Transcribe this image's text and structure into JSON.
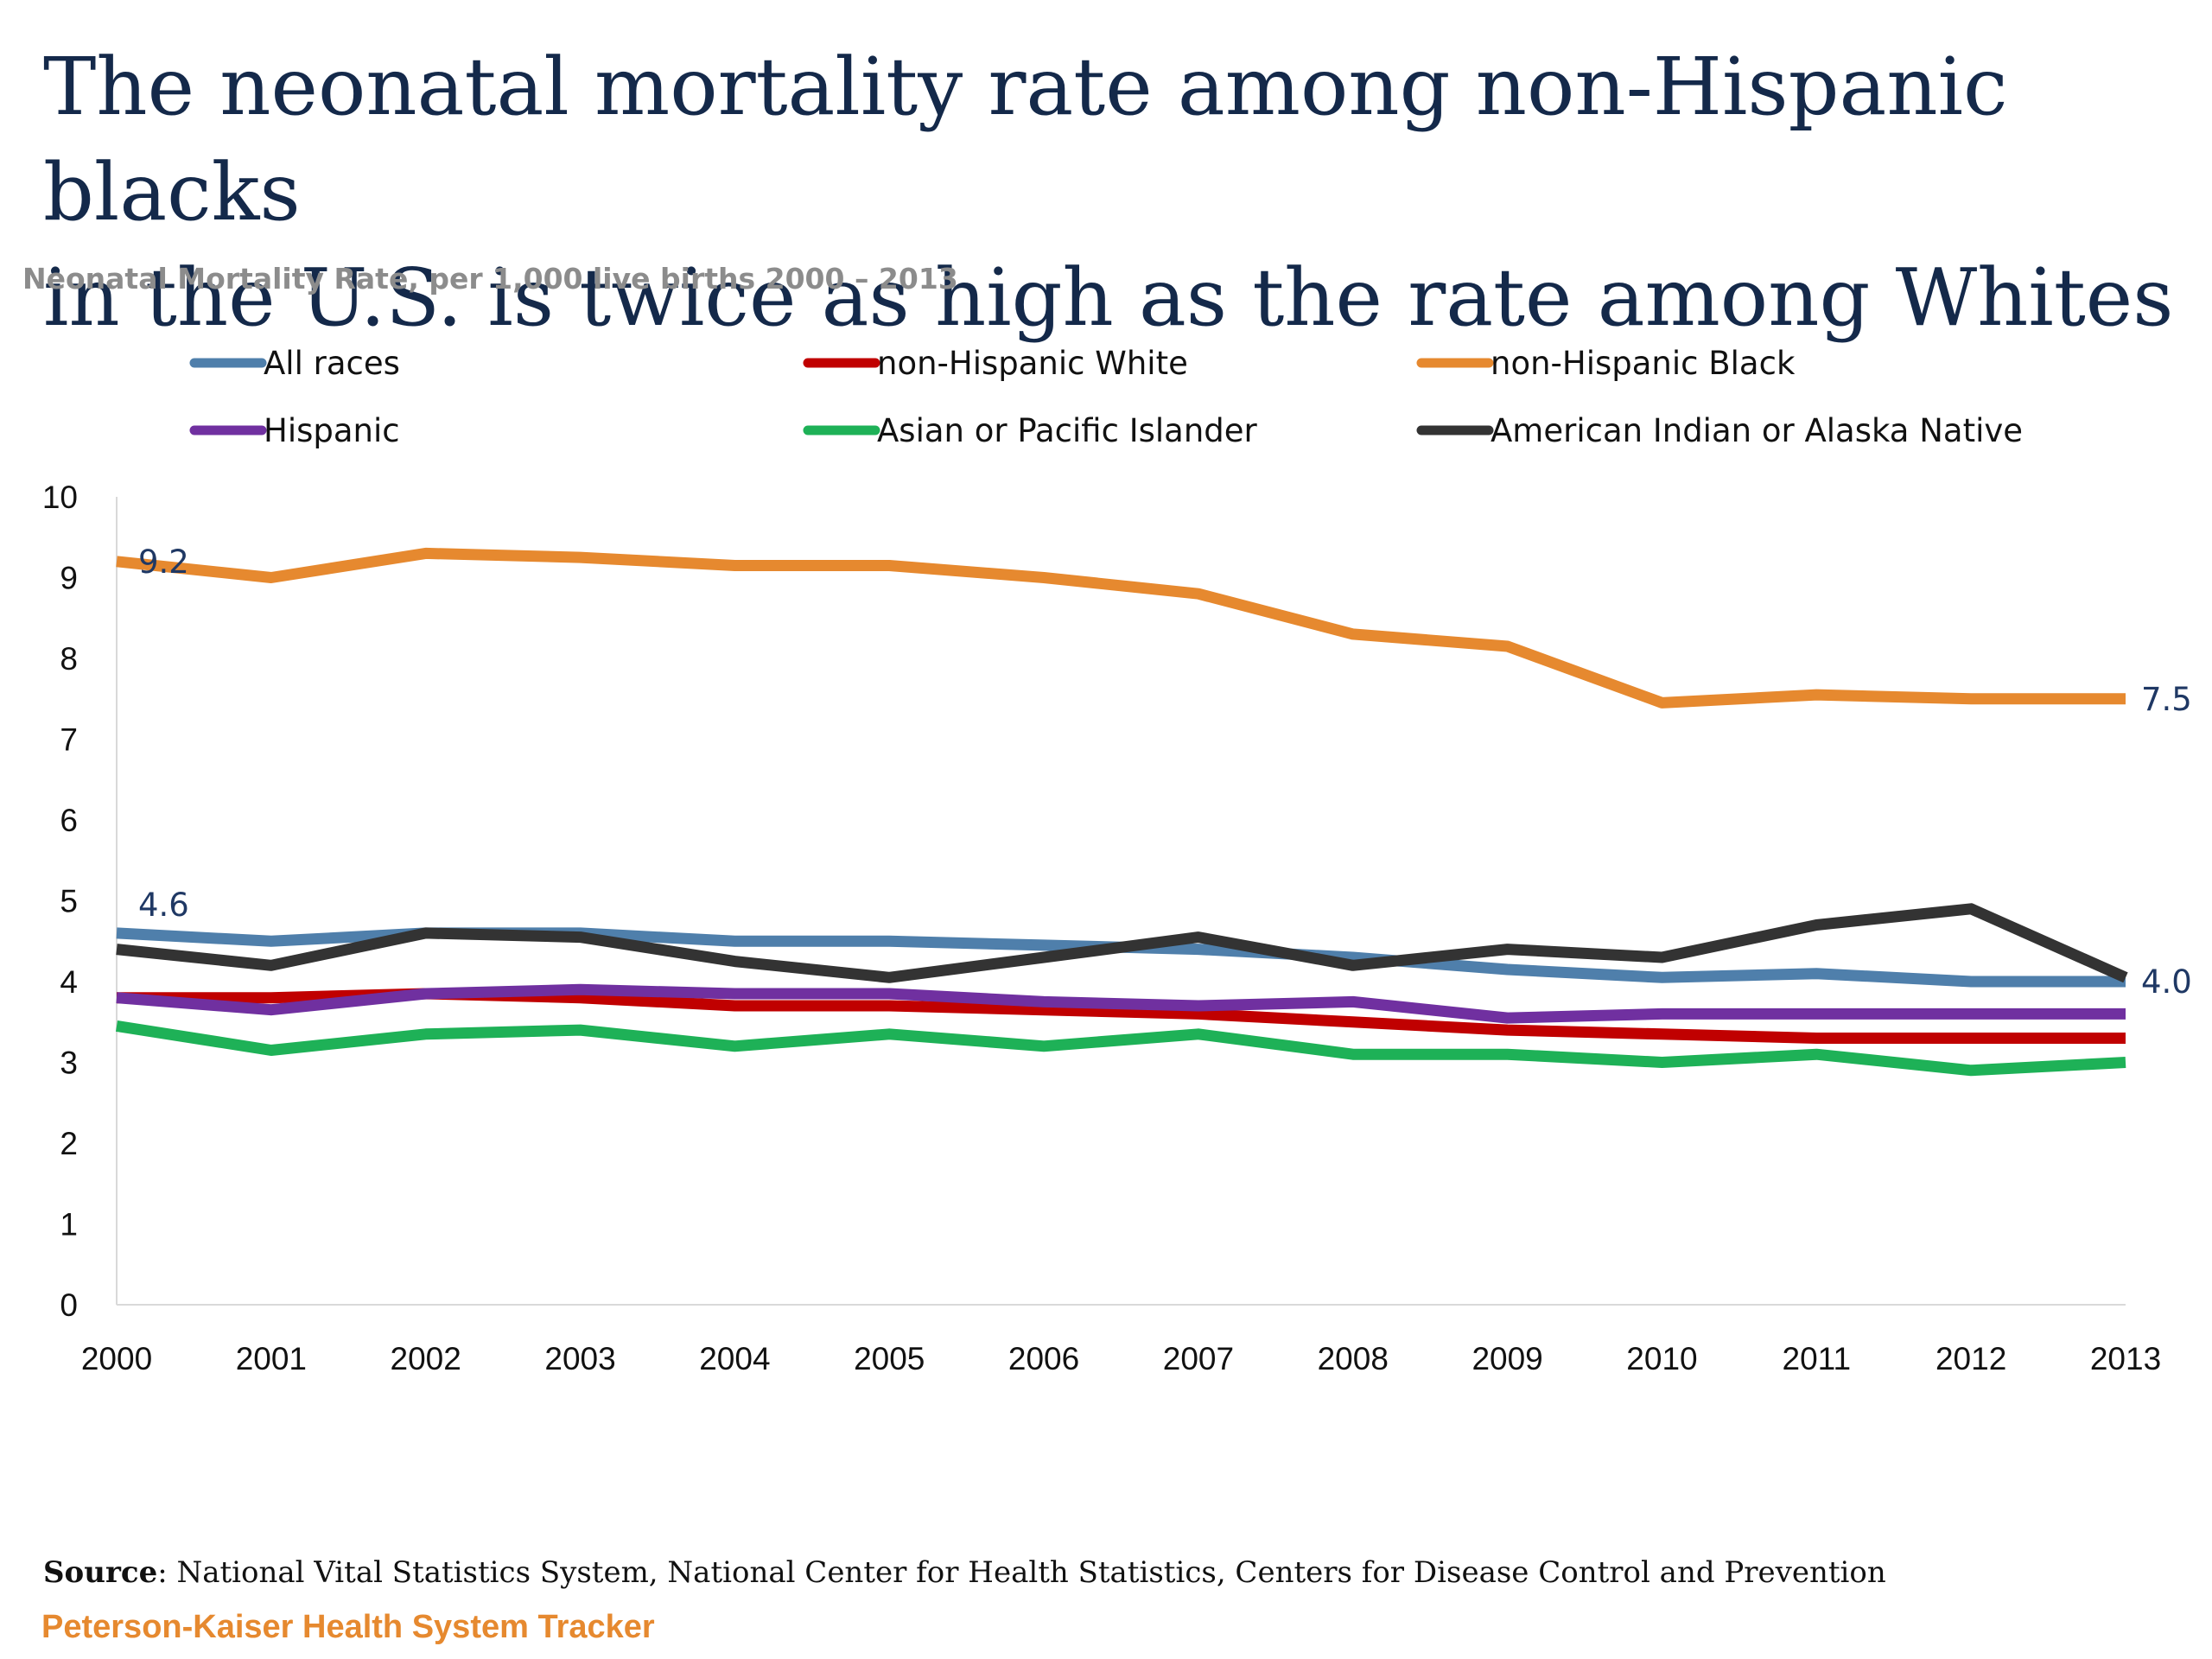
{
  "title_line1": "The neonatal mortality rate among non-Hispanic blacks",
  "title_line2": "in the U.S. is twice as high as the rate among Whites",
  "subtitle": "Neonatal Mortality Rate, per 1,000 live births 2000 – 2013",
  "source_label": "Source",
  "source_text": ": National Vital Statistics System, National Center for Health Statistics, Centers for Disease Control and Prevention",
  "brand": "Peterson-Kaiser Health System Tracker",
  "chart_data": {
    "type": "line",
    "x": [
      2000,
      2001,
      2002,
      2003,
      2004,
      2005,
      2006,
      2007,
      2008,
      2009,
      2010,
      2011,
      2012,
      2013
    ],
    "ylim": [
      0,
      10
    ],
    "yticks": [
      0,
      1,
      2,
      3,
      4,
      5,
      6,
      7,
      8,
      9,
      10
    ],
    "grid": false,
    "legend_position": "top",
    "series": [
      {
        "name": "All races",
        "color": "#4f7fab",
        "values": [
          4.6,
          4.5,
          4.6,
          4.6,
          4.5,
          4.5,
          4.45,
          4.4,
          4.3,
          4.15,
          4.05,
          4.1,
          4.0,
          4.0
        ]
      },
      {
        "name": "non-Hispanic White",
        "color": "#c00000",
        "values": [
          3.8,
          3.8,
          3.85,
          3.8,
          3.7,
          3.7,
          3.65,
          3.6,
          3.5,
          3.4,
          3.35,
          3.3,
          3.3,
          3.3
        ]
      },
      {
        "name": "non-Hispanic Black",
        "color": "#e6892f",
        "values": [
          9.2,
          9.0,
          9.3,
          9.25,
          9.15,
          9.15,
          9.0,
          8.8,
          8.3,
          8.15,
          7.45,
          7.55,
          7.5,
          7.5
        ]
      },
      {
        "name": "Hispanic",
        "color": "#7030a0",
        "values": [
          3.8,
          3.65,
          3.85,
          3.9,
          3.85,
          3.85,
          3.75,
          3.7,
          3.75,
          3.55,
          3.6,
          3.6,
          3.6,
          3.6
        ]
      },
      {
        "name": "Asian or Pacific Islander",
        "color": "#1eb157",
        "values": [
          3.45,
          3.15,
          3.35,
          3.4,
          3.2,
          3.35,
          3.2,
          3.35,
          3.1,
          3.1,
          3.0,
          3.1,
          2.9,
          3.0
        ]
      },
      {
        "name": "American Indian or Alaska Native",
        "color": "#333333",
        "values": [
          4.4,
          4.2,
          4.6,
          4.55,
          4.25,
          4.05,
          4.3,
          4.55,
          4.2,
          4.4,
          4.3,
          4.7,
          4.9,
          4.05
        ]
      }
    ],
    "annotations": [
      {
        "text": "9.2",
        "series": "non-Hispanic Black",
        "x": 2000
      },
      {
        "text": "7.5",
        "series": "non-Hispanic Black",
        "x": 2013
      },
      {
        "text": "4.6",
        "series": "All races",
        "x": 2000
      },
      {
        "text": "4.0",
        "series": "All races",
        "x": 2013
      }
    ]
  }
}
